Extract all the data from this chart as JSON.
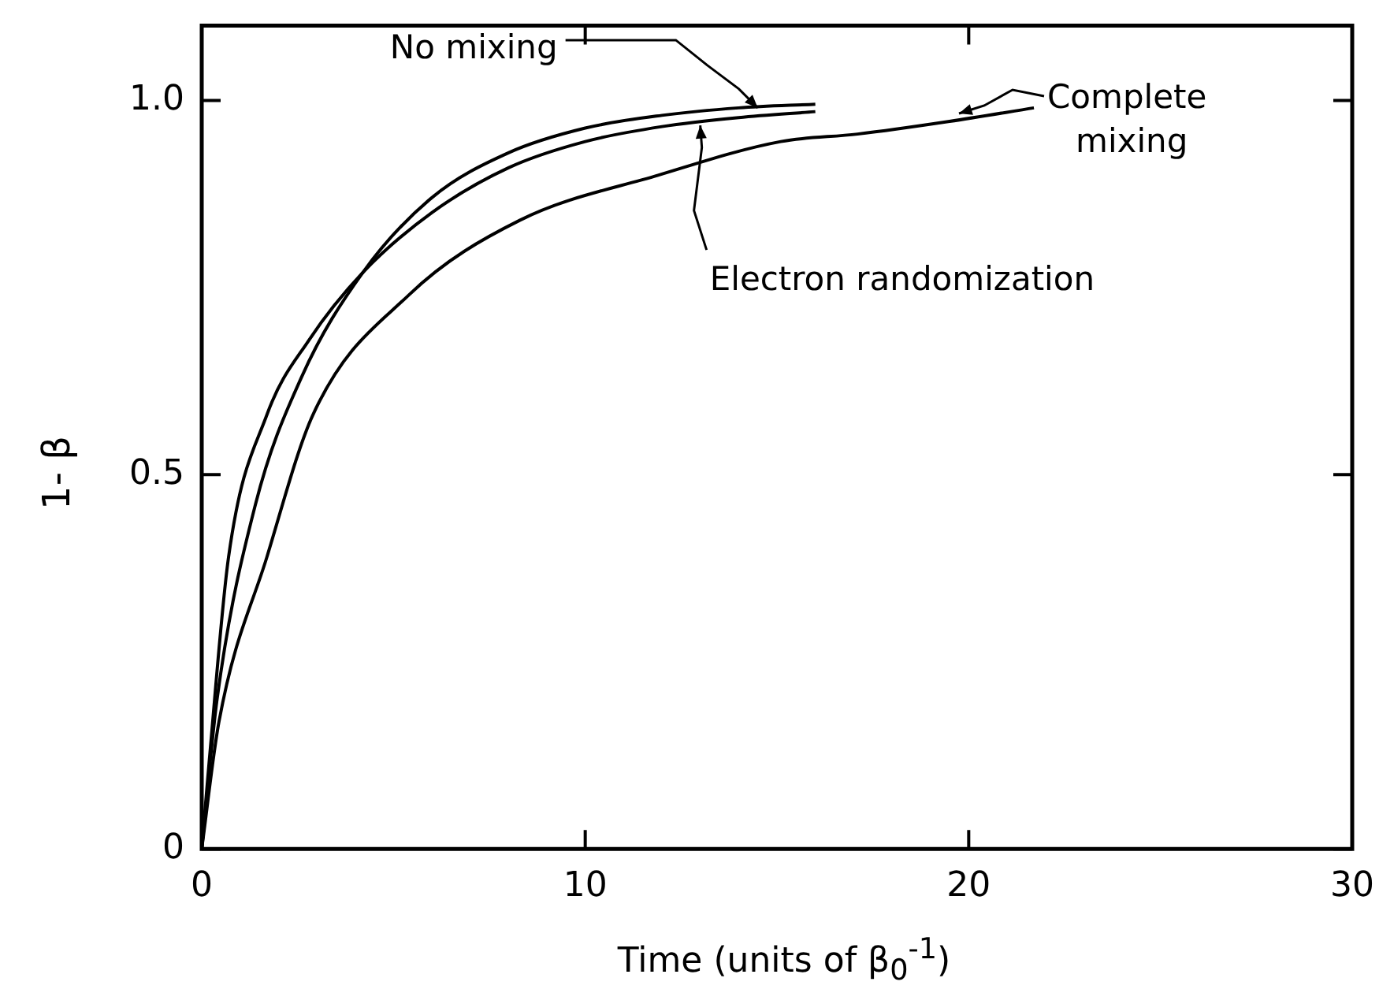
{
  "chart_data": {
    "type": "line",
    "xlabel": "Time (units of β$_{0}$$^{-1}$)",
    "ylabel": "1- β",
    "xlim": [
      0,
      30
    ],
    "ylim": [
      0,
      1.1
    ],
    "xticks": [
      0,
      10,
      20,
      30
    ],
    "yticks": [
      0,
      0.5,
      {
        "value": 1,
        "label": "1.0"
      }
    ],
    "grid": false,
    "legend": false,
    "marker": "none",
    "line_style": "solid",
    "series": [
      {
        "color": "#000000",
        "x": [
          0,
          0.4,
          1.4,
          2.6,
          4.2,
          6,
          8,
          10,
          12,
          14,
          16
        ],
        "values": [
          0,
          0.2,
          0.46,
          0.63,
          0.77,
          0.87,
          0.93,
          0.963,
          0.98,
          0.99,
          0.995
        ]
      },
      {
        "color": "#000000",
        "x": [
          0,
          0.2,
          0.7,
          1.7,
          2.8,
          4.2,
          6,
          8,
          10,
          12,
          14,
          16
        ],
        "values": [
          0,
          0.12,
          0.39,
          0.58,
          0.68,
          0.77,
          0.85,
          0.91,
          0.945,
          0.965,
          0.977,
          0.985
        ]
      },
      {
        "color": "#000000",
        "x": [
          0,
          0.45,
          1.7,
          2.9,
          5.4,
          8.3,
          11.9,
          15.1,
          17.1,
          19.5,
          21.7
        ],
        "values": [
          0,
          0.17,
          0.39,
          0.58,
          0.74,
          0.84,
          0.9,
          0.945,
          0.955,
          0.972,
          0.99
        ]
      }
    ],
    "annotations": [
      {
        "text": "No mixing",
        "x": 14.5,
        "y": 0.99
      },
      {
        "text": "Electron randomization",
        "x": 13,
        "y": 0.975
      },
      {
        "text": "Complete mixing",
        "x": 19.5,
        "y": 0.972
      }
    ]
  }
}
